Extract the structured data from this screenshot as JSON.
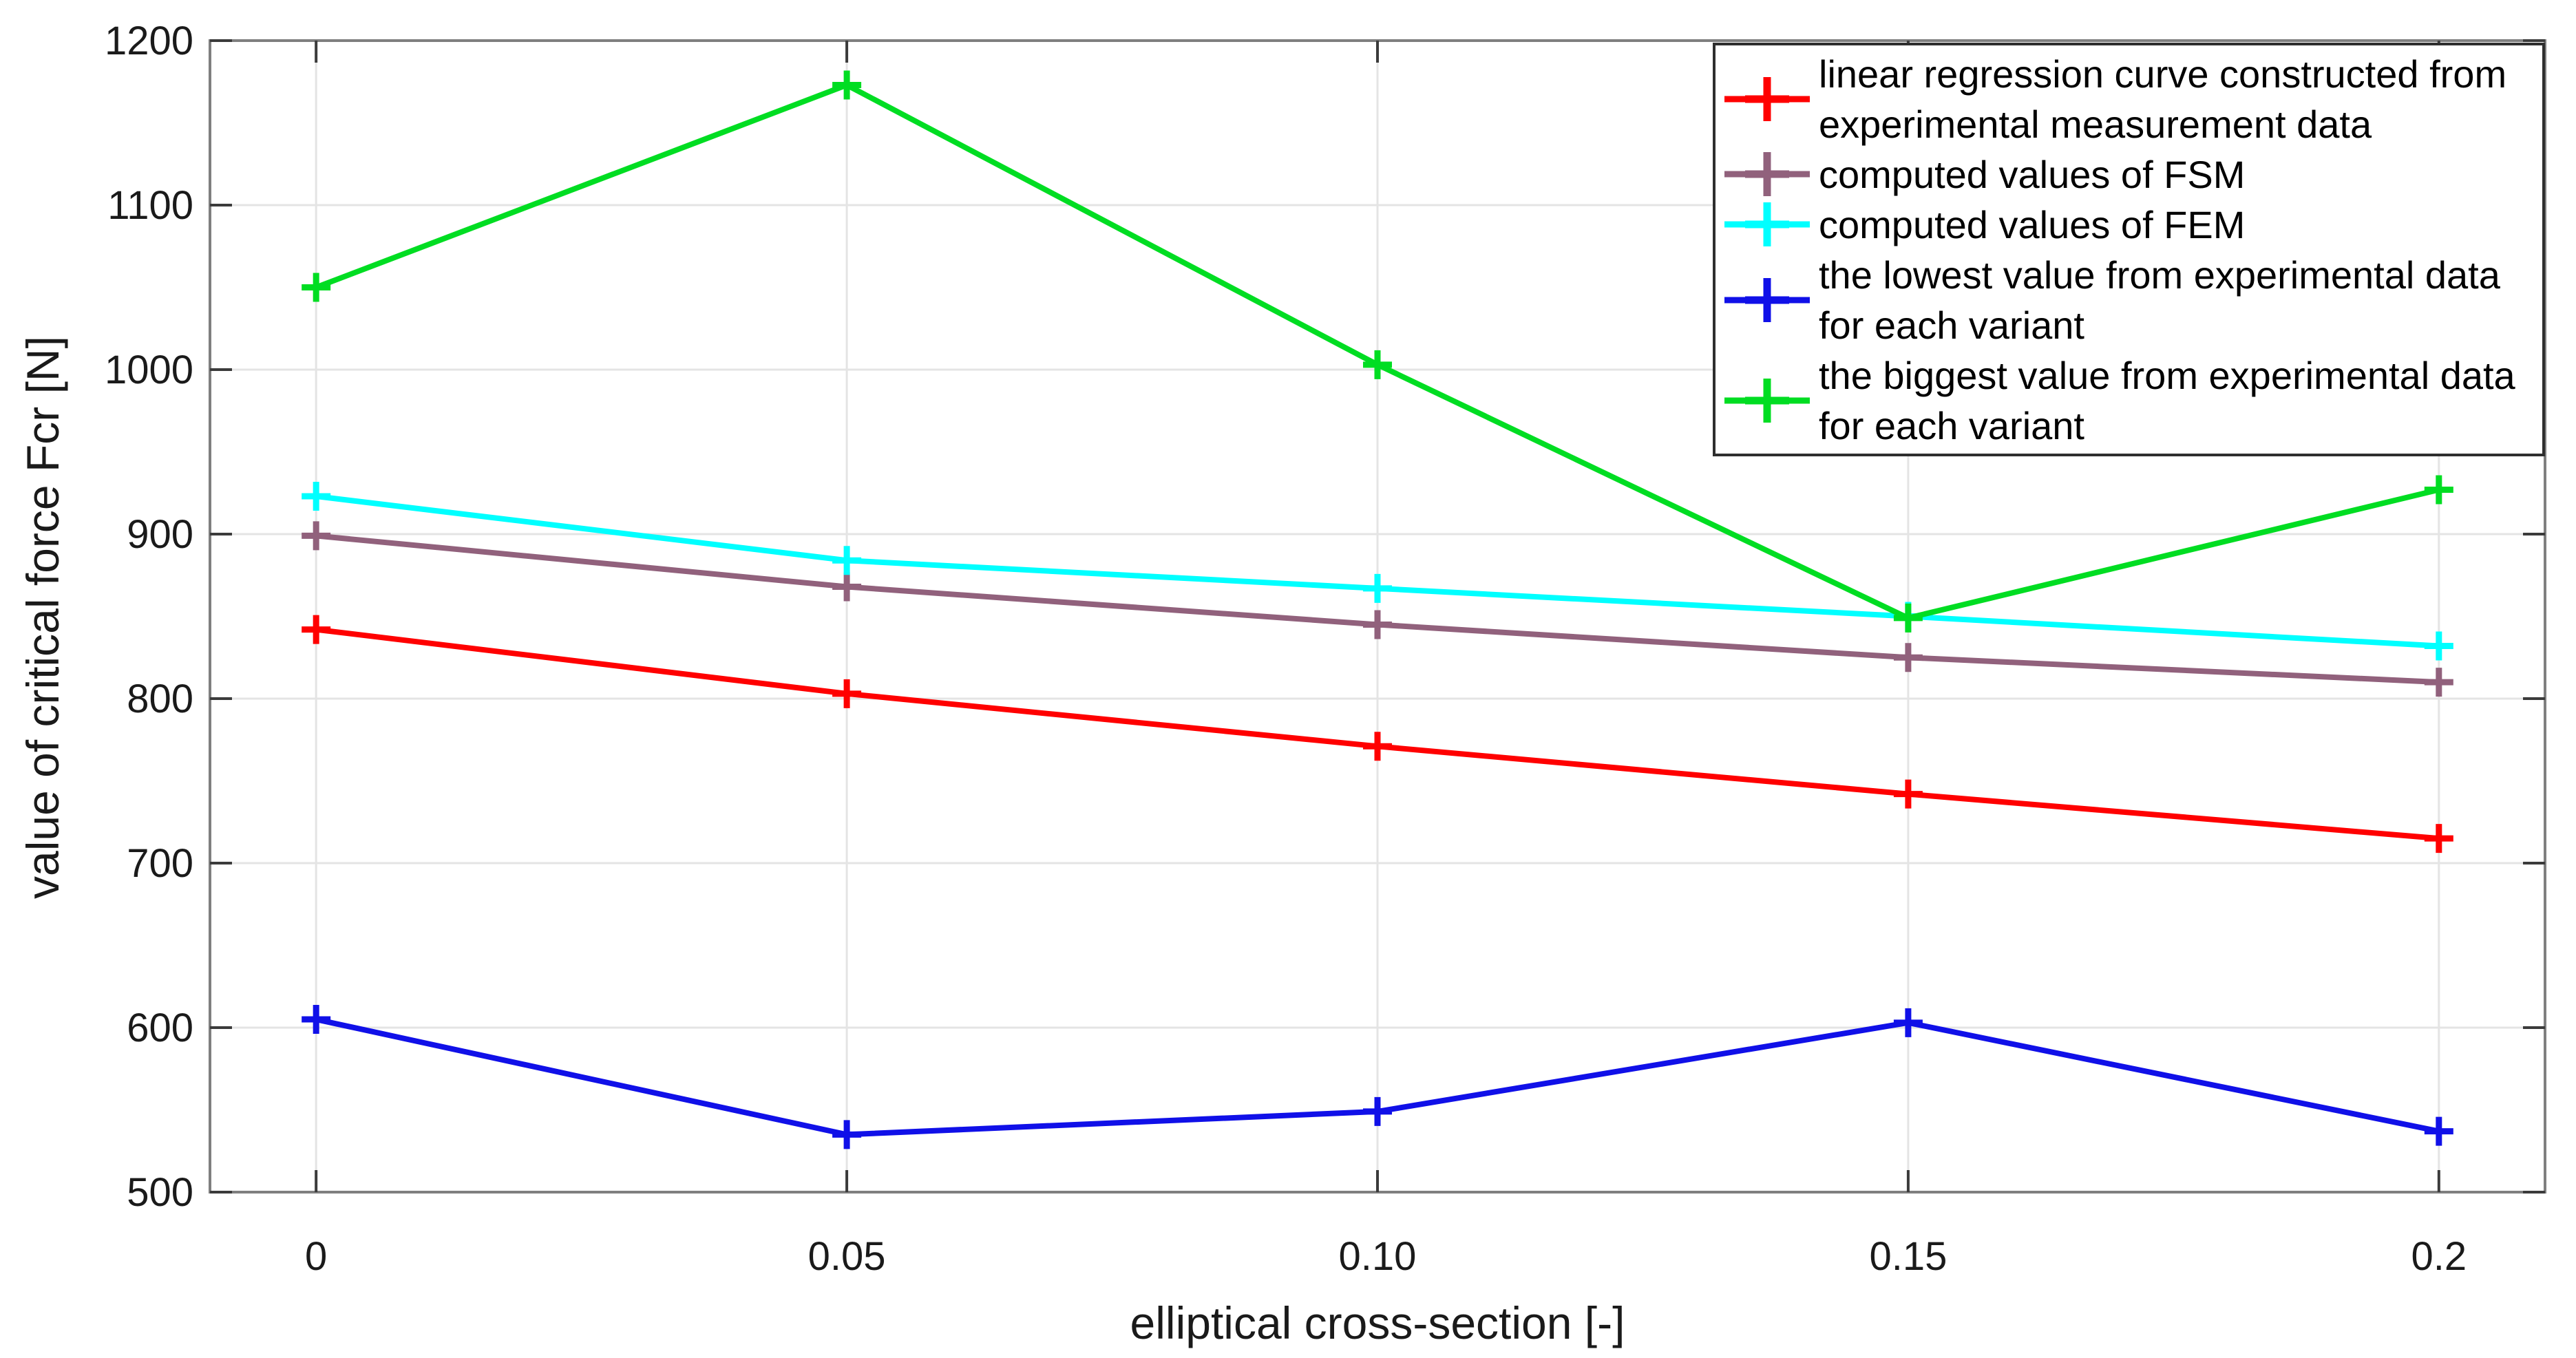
{
  "chart_data": {
    "type": "line",
    "title": "",
    "xlabel": "elliptical cross-section [-]",
    "ylabel": "value of critical force Fcr [N]",
    "x": [
      0,
      0.05,
      0.1,
      0.15,
      0.2
    ],
    "xtick_labels": [
      "0",
      "0.05",
      "0.10",
      "0.15",
      "0.2"
    ],
    "yticks": [
      500,
      600,
      700,
      800,
      900,
      1000,
      1100,
      1200
    ],
    "xlim": [
      -0.01,
      0.21
    ],
    "ylim": [
      500,
      1200
    ],
    "grid": true,
    "legend_position": "top-right",
    "marker": "+",
    "series": [
      {
        "name": "linear regression curve constructed from experimental measurement data",
        "color": "#ff0000",
        "values": [
          842,
          803,
          771,
          742,
          715
        ]
      },
      {
        "name": "computed values of FSM",
        "color": "#91617c",
        "values": [
          899,
          868,
          845,
          825,
          810
        ]
      },
      {
        "name": "computed values of FEM",
        "color": "#00ffff",
        "values": [
          923,
          884,
          867,
          850,
          832
        ]
      },
      {
        "name": "the lowest value from experimental data for each variant",
        "color": "#1010e8",
        "values": [
          605,
          535,
          549,
          603,
          537
        ]
      },
      {
        "name": "the biggest value from experimental data for each variant",
        "color": "#00dd22",
        "values": [
          1050,
          1173,
          1003,
          849,
          927
        ]
      }
    ],
    "style": {
      "grid_color": "#e4e4e4",
      "box_color": "#7f7f7f",
      "tick_color": "#3b3b3b",
      "tick_label_color": "#1a1a1a"
    }
  }
}
